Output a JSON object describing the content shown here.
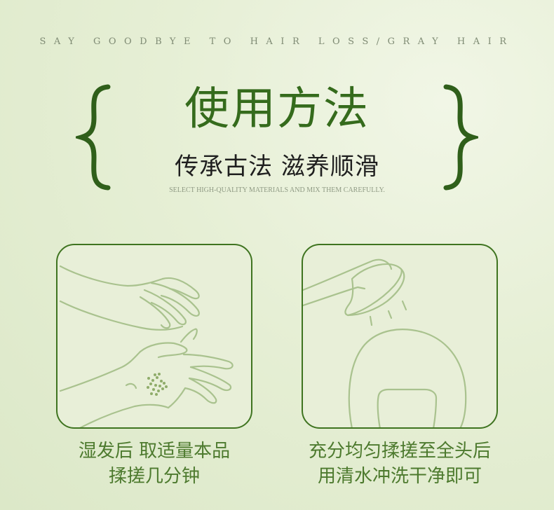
{
  "header": {
    "tagline": "SAY GOODBYE TO HAIR LOSS/GRAY HAIR",
    "title": "使用方法",
    "subtitle": "传承古法 滋养顺滑",
    "small_english": "SELECT HIGH-QUALITY MATERIALS AND MIX THEM CAREFULLY."
  },
  "steps": [
    {
      "illustration": "hands-icon",
      "caption_line1": "湿发后 取适量本品",
      "caption_line2": "揉搓几分钟"
    },
    {
      "illustration": "shower-rinse-icon",
      "caption_line1": "充分均匀揉搓至全头后",
      "caption_line2": "用清水冲洗干净即可"
    }
  ],
  "colors": {
    "accent_green": "#356b1c",
    "card_border": "#3f7420",
    "line_art": "#a9c28e",
    "caption": "#4d7a2e",
    "background": "#e2ecd0"
  }
}
